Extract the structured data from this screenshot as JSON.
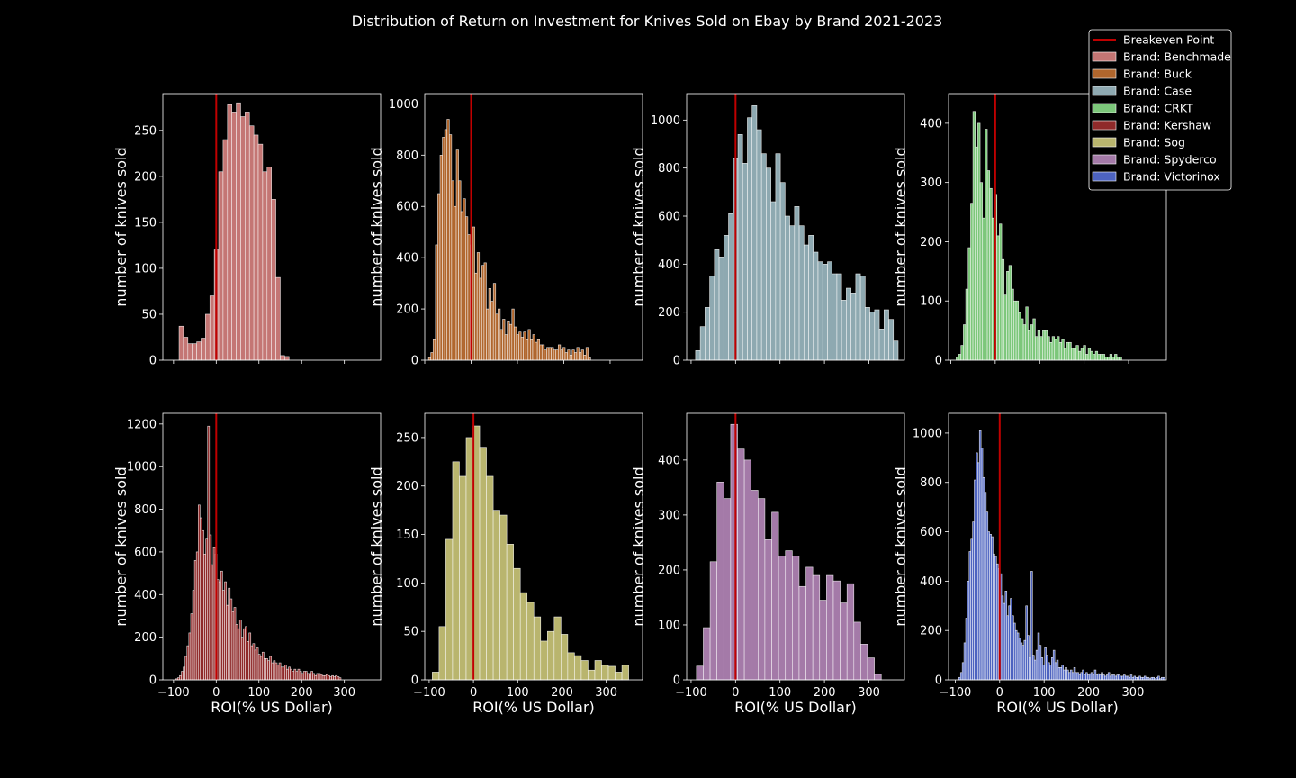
{
  "title": "Distribution of Return on Investment for Knives Sold on Ebay by Brand 2021-2023",
  "colors": {
    "background": "#000000",
    "breakeven": "#c00000",
    "bar_edge": "#ffffff"
  },
  "legend": {
    "placement": "top-right",
    "entries": [
      {
        "label": "Breakeven Point",
        "color": "#c00000",
        "kind": "line"
      },
      {
        "label": "Brand: Benchmade",
        "color": "#c47674",
        "kind": "patch"
      },
      {
        "label": "Brand: Buck",
        "color": "#b0662d",
        "kind": "patch"
      },
      {
        "label": "Brand: Case",
        "color": "#8ea9b1",
        "kind": "patch"
      },
      {
        "label": "Brand: CRKT",
        "color": "#7cc77a",
        "kind": "patch"
      },
      {
        "label": "Brand: Kershaw",
        "color": "#8f2a2a",
        "kind": "patch"
      },
      {
        "label": "Brand: Sog",
        "color": "#b9b56e",
        "kind": "patch"
      },
      {
        "label": "Brand: Spyderco",
        "color": "#a47aa8",
        "kind": "patch"
      },
      {
        "label": "Brand: Victorinox",
        "color": "#4d63c0",
        "kind": "patch"
      }
    ]
  },
  "chart_data": [
    {
      "type": "bar",
      "brand": "Benchmade",
      "color": "#c47674",
      "xlabel": "",
      "ylabel": "number of knives sold",
      "xlim": [
        -125,
        385
      ],
      "ylim": [
        0,
        290
      ],
      "yticks": [
        0,
        50,
        100,
        150,
        200,
        250
      ],
      "xticks": [
        -100,
        0,
        100,
        200,
        300
      ],
      "show_xticklabels": false,
      "breakeven": 0,
      "bin_start": -87,
      "bin_width": 10.3,
      "values": [
        37,
        25,
        18,
        18,
        20,
        24,
        50,
        70,
        120,
        205,
        240,
        278,
        270,
        280,
        265,
        270,
        255,
        245,
        235,
        205,
        210,
        175,
        90,
        5,
        4
      ]
    },
    {
      "type": "bar",
      "brand": "Buck",
      "color": "#b0662d",
      "xlabel": "",
      "ylabel": "number of knives sold",
      "xlim": [
        -100,
        370
      ],
      "ylim": [
        0,
        1040
      ],
      "yticks": [
        0,
        200,
        400,
        600,
        800,
        1000
      ],
      "xticks": [
        -100,
        0,
        100,
        200,
        300
      ],
      "show_xticklabels": false,
      "breakeven": 0,
      "bin_start": -92,
      "bin_width": 5,
      "values": [
        10,
        30,
        80,
        450,
        650,
        800,
        870,
        900,
        940,
        880,
        700,
        600,
        820,
        700,
        580,
        630,
        560,
        490,
        450,
        520,
        340,
        420,
        320,
        370,
        380,
        200,
        280,
        230,
        300,
        180,
        200,
        120,
        160,
        100,
        150,
        140,
        200,
        130,
        100,
        110,
        90,
        110,
        80,
        120,
        80,
        100,
        70,
        80,
        60,
        60,
        40,
        50,
        50,
        50,
        40,
        40,
        60,
        40,
        50,
        30,
        40,
        20,
        40,
        30,
        50,
        30,
        40,
        20,
        50,
        10
      ]
    },
    {
      "type": "bar",
      "brand": "Case",
      "color": "#8ea9b1",
      "xlabel": "",
      "ylabel": "number of knives sold",
      "xlim": [
        -110,
        380
      ],
      "ylim": [
        0,
        1110
      ],
      "yticks": [
        0,
        200,
        400,
        600,
        800,
        1000
      ],
      "xticks": [
        -100,
        0,
        100,
        200,
        300
      ],
      "show_xticklabels": false,
      "breakeven": 0,
      "bin_start": -90,
      "bin_width": 10.6,
      "values": [
        40,
        140,
        220,
        350,
        460,
        430,
        520,
        610,
        840,
        940,
        820,
        1010,
        1060,
        960,
        860,
        800,
        660,
        860,
        740,
        600,
        560,
        640,
        560,
        480,
        520,
        450,
        410,
        400,
        410,
        360,
        360,
        250,
        300,
        280,
        360,
        350,
        220,
        200,
        210,
        130,
        210,
        170,
        80
      ]
    },
    {
      "type": "bar",
      "brand": "CRKT",
      "color": "#7cc77a",
      "xlabel": "",
      "ylabel": "number of knives sold",
      "xlim": [
        -105,
        385
      ],
      "ylim": [
        0,
        450
      ],
      "yticks": [
        0,
        100,
        200,
        300,
        400
      ],
      "xticks": [
        -100,
        0,
        100,
        200,
        300
      ],
      "show_xticklabels": false,
      "breakeven": 0,
      "bin_start": -88,
      "bin_width": 5.4,
      "values": [
        5,
        10,
        25,
        60,
        120,
        190,
        265,
        420,
        360,
        400,
        300,
        240,
        390,
        320,
        290,
        240,
        280,
        210,
        230,
        170,
        110,
        150,
        160,
        120,
        100,
        100,
        80,
        70,
        60,
        90,
        50,
        60,
        70,
        40,
        50,
        40,
        50,
        50,
        40,
        30,
        40,
        35,
        40,
        30,
        35,
        20,
        30,
        30,
        20,
        20,
        25,
        15,
        20,
        25,
        10,
        20,
        15,
        10,
        15,
        10,
        10,
        10,
        5,
        5,
        10,
        5,
        10,
        5,
        5
      ]
    },
    {
      "type": "bar",
      "brand": "Kershaw",
      "color": "#8f2a2a",
      "xlabel": "ROI(% US Dollar)",
      "ylabel": "number of knives sold",
      "xlim": [
        -125,
        385
      ],
      "ylim": [
        0,
        1250
      ],
      "yticks": [
        0,
        200,
        400,
        600,
        800,
        1000,
        1200
      ],
      "xticks": [
        -100,
        0,
        100,
        200,
        300
      ],
      "show_xticklabels": true,
      "breakeven": 0,
      "bin_start": -95,
      "bin_width": 4.4,
      "values": [
        5,
        10,
        20,
        40,
        60,
        110,
        160,
        220,
        310,
        420,
        560,
        600,
        820,
        760,
        700,
        590,
        660,
        1190,
        680,
        540,
        620,
        590,
        470,
        460,
        510,
        420,
        460,
        350,
        430,
        380,
        320,
        340,
        260,
        240,
        280,
        200,
        240,
        250,
        180,
        220,
        160,
        170,
        140,
        150,
        120,
        110,
        130,
        100,
        100,
        90,
        110,
        80,
        90,
        80,
        70,
        80,
        60,
        60,
        70,
        50,
        60,
        50,
        40,
        50,
        40,
        50,
        40,
        30,
        40,
        40,
        30,
        30,
        40,
        30,
        20,
        30,
        30,
        25,
        20,
        20,
        25,
        20,
        15,
        20,
        15,
        20,
        15,
        10
      ]
    },
    {
      "type": "bar",
      "brand": "Sog",
      "color": "#b9b56e",
      "xlabel": "ROI(% US Dollar)",
      "ylabel": "number of knives sold",
      "xlim": [
        -110,
        382
      ],
      "ylim": [
        0,
        275
      ],
      "yticks": [
        0,
        50,
        100,
        150,
        200,
        250
      ],
      "xticks": [
        -100,
        0,
        100,
        200,
        300
      ],
      "show_xticklabels": true,
      "breakeven": 0,
      "bin_start": -93,
      "bin_width": 15.3,
      "values": [
        8,
        55,
        145,
        225,
        210,
        250,
        262,
        240,
        210,
        175,
        170,
        140,
        115,
        90,
        80,
        65,
        40,
        50,
        65,
        47,
        28,
        25,
        20,
        10,
        20,
        15,
        14,
        8,
        15
      ]
    },
    {
      "type": "bar",
      "brand": "Spyderco",
      "color": "#a47aa8",
      "xlabel": "ROI(% US Dollar)",
      "ylabel": "number of knives sold",
      "xlim": [
        -110,
        380
      ],
      "ylim": [
        0,
        485
      ],
      "yticks": [
        0,
        100,
        200,
        300,
        400
      ],
      "xticks": [
        -100,
        0,
        100,
        200,
        300
      ],
      "show_xticklabels": true,
      "breakeven": 0,
      "bin_start": -88,
      "bin_width": 15.4,
      "values": [
        25,
        95,
        215,
        360,
        330,
        465,
        420,
        400,
        345,
        330,
        255,
        305,
        225,
        235,
        225,
        170,
        205,
        190,
        145,
        190,
        180,
        140,
        175,
        105,
        65,
        40,
        10
      ]
    },
    {
      "type": "bar",
      "brand": "Victorinox",
      "color": "#4d63c0",
      "xlabel": "ROI(% US Dollar)",
      "ylabel": "number of knives sold",
      "xlim": [
        -115,
        375
      ],
      "ylim": [
        0,
        1080
      ],
      "yticks": [
        0,
        200,
        400,
        600,
        800,
        1000
      ],
      "xticks": [
        -100,
        0,
        100,
        200,
        300
      ],
      "show_xticklabels": true,
      "breakeven": 0,
      "bin_start": -92,
      "bin_width": 3.86,
      "values": [
        10,
        30,
        70,
        150,
        250,
        400,
        520,
        570,
        640,
        810,
        920,
        880,
        1010,
        940,
        820,
        760,
        680,
        600,
        590,
        580,
        510,
        500,
        470,
        450,
        430,
        340,
        310,
        360,
        260,
        300,
        330,
        260,
        230,
        200,
        190,
        170,
        150,
        140,
        160,
        300,
        180,
        90,
        440,
        100,
        80,
        120,
        190,
        140,
        90,
        60,
        130,
        100,
        70,
        60,
        90,
        120,
        70,
        80,
        50,
        50,
        60,
        40,
        50,
        40,
        30,
        40,
        30,
        50,
        30,
        30,
        20,
        30,
        40,
        20,
        30,
        20,
        25,
        30,
        20,
        40,
        20,
        25,
        20,
        30,
        20,
        15,
        20,
        30,
        15,
        20,
        20,
        15,
        20,
        20,
        15,
        15,
        20,
        15,
        15,
        10,
        20,
        10,
        15,
        10,
        10,
        15,
        10,
        10,
        15,
        10,
        10,
        5,
        10,
        10,
        5,
        10,
        15,
        5,
        10,
        10
      ]
    }
  ]
}
